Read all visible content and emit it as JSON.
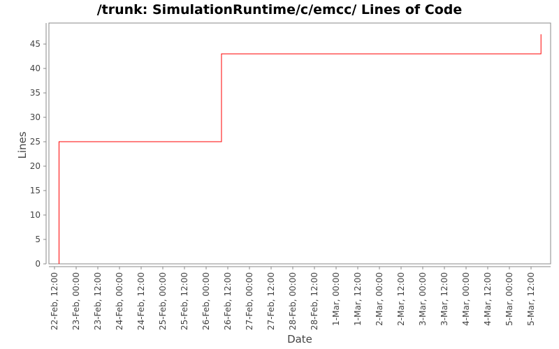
{
  "chart_data": {
    "type": "line",
    "title": "/trunk: SimulationRuntime/c/emcc/ Lines of Code",
    "xlabel": "Date",
    "ylabel": "Lines",
    "ylim": [
      0,
      49.3
    ],
    "xlim": [
      "22-Feb 08:54",
      "5-Mar 22:50"
    ],
    "yticks": [
      0,
      5,
      10,
      15,
      20,
      25,
      30,
      35,
      40,
      45
    ],
    "xticks": [
      "22-Feb, 12:00",
      "23-Feb, 00:00",
      "23-Feb, 12:00",
      "24-Feb, 00:00",
      "24-Feb, 12:00",
      "25-Feb, 00:00",
      "25-Feb, 12:00",
      "26-Feb, 00:00",
      "26-Feb, 12:00",
      "27-Feb, 00:00",
      "27-Feb, 12:00",
      "28-Feb, 00:00",
      "28-Feb, 12:00",
      "1-Mar, 00:00",
      "1-Mar, 12:00",
      "2-Mar, 00:00",
      "2-Mar, 12:00",
      "3-Mar, 00:00",
      "3-Mar, 12:00",
      "4-Mar, 00:00",
      "4-Mar, 12:00",
      "5-Mar, 00:00",
      "5-Mar, 12:00"
    ],
    "grid": false,
    "step": true,
    "series": [
      {
        "color": "#ff0000",
        "points": [
          {
            "x": "22-Feb 14:30",
            "y": 0
          },
          {
            "x": "22-Feb 14:30",
            "y": 25
          },
          {
            "x": "26-Feb 08:30",
            "y": 43
          },
          {
            "x": "5-Mar 17:30",
            "y": 47
          }
        ]
      }
    ]
  }
}
